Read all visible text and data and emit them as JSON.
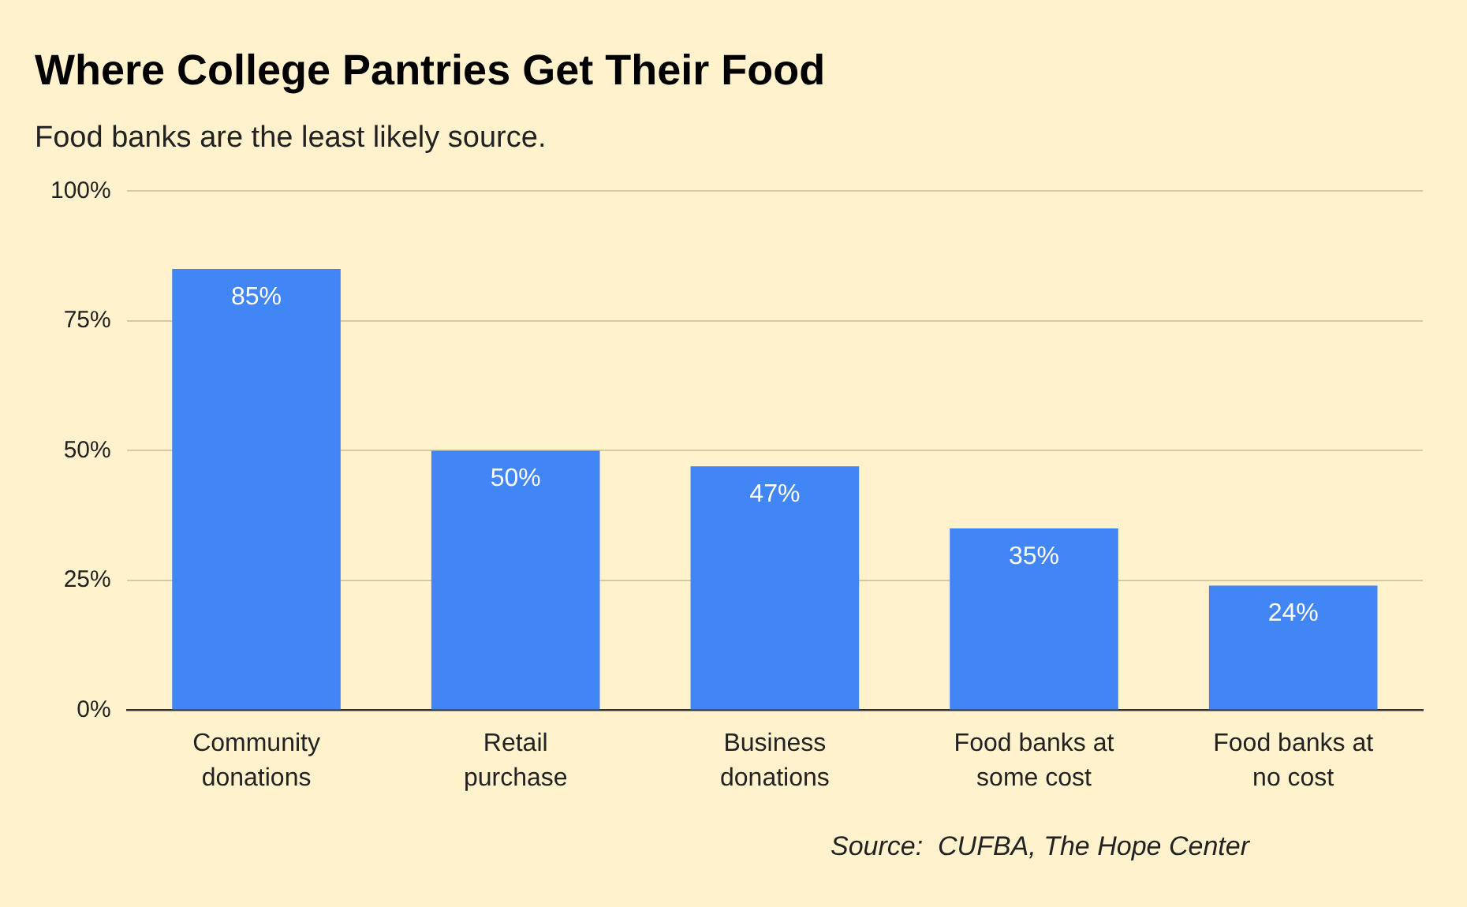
{
  "chart_data": {
    "type": "bar",
    "title": "Where College Pantries Get Their Food",
    "subtitle": "Food banks are the least likely source.",
    "categories": [
      "Community donations",
      "Retail purchase",
      "Business donations",
      "Food banks at some cost",
      "Food banks at no cost"
    ],
    "values": [
      85,
      50,
      47,
      35,
      24
    ],
    "color": "#4285f4",
    "value_labels": [
      "85%",
      "50%",
      "47%",
      "35%",
      "24%"
    ],
    "ylim": [
      0,
      100
    ],
    "yticks": [
      {
        "value": 0,
        "label": "0%"
      },
      {
        "value": 25,
        "label": "25%"
      },
      {
        "value": 50,
        "label": "50%"
      },
      {
        "value": 75,
        "label": "75%"
      },
      {
        "value": 100,
        "label": "100%"
      }
    ],
    "grid": "y",
    "legend": false,
    "annotations": [
      "Source:  CUFBA, The Hope Center"
    ]
  }
}
